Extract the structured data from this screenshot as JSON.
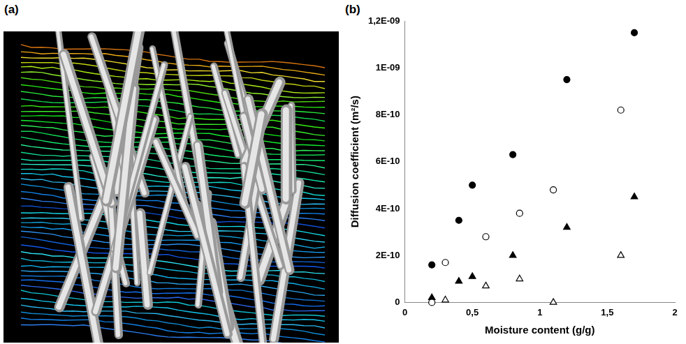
{
  "panel_labels": [
    "(a)",
    "(b)"
  ],
  "chart_data": {
    "type": "scatter",
    "x_label": "Moisture content (g/g)",
    "y_label": "Diffusion coefficient (m²/s)",
    "xlim": [
      0,
      2
    ],
    "ylim": [
      0,
      1.2e-09
    ],
    "xticks": [
      0,
      {
        "value": 0.5,
        "label": "0,5"
      },
      1,
      {
        "value": 1.5,
        "label": "1,5"
      },
      2
    ],
    "yticks": [
      0,
      {
        "value": 2e-10,
        "label": "2E-10"
      },
      {
        "value": 4e-10,
        "label": "4E-10"
      },
      {
        "value": 6e-10,
        "label": "6E-10"
      },
      {
        "value": 8e-10,
        "label": "8E-10"
      },
      {
        "value": 1e-09,
        "label": "1E-09"
      },
      {
        "value": 1.2e-09,
        "label": "1,2E-09"
      }
    ],
    "grid": false,
    "series": [
      {
        "color": "#000000",
        "marker": "circle",
        "x": [
          0.2,
          0.4,
          0.5,
          0.8,
          1.2,
          1.7
        ],
        "values": [
          1.6e-10,
          3.5e-10,
          5e-10,
          6.3e-10,
          9.5e-10,
          1.15e-09
        ]
      },
      {
        "color": "#000000",
        "marker": "open-circle",
        "x": [
          0.2,
          0.3,
          0.6,
          0.85,
          1.1,
          1.6
        ],
        "values": [
          0,
          1.7e-10,
          2.8e-10,
          3.8e-10,
          4.8e-10,
          8.2e-10
        ]
      },
      {
        "color": "#000000",
        "marker": "triangle",
        "x": [
          0.2,
          0.4,
          0.5,
          0.8,
          1.2,
          1.7
        ],
        "values": [
          2e-11,
          9e-11,
          1.1e-10,
          2e-10,
          3.2e-10,
          4.5e-10
        ]
      },
      {
        "color": "#000000",
        "marker": "open-triangle",
        "x": [
          0.3,
          0.6,
          0.85,
          1.1,
          1.6
        ],
        "values": [
          1e-11,
          7e-11,
          1e-10,
          0,
          2e-10
        ]
      }
    ]
  }
}
